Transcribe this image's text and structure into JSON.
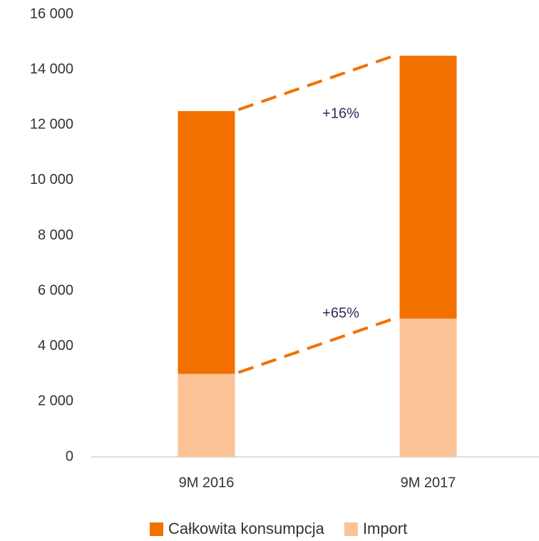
{
  "chart_data": {
    "type": "stacked_bar",
    "categories": [
      "9M 2016",
      "9M 2017"
    ],
    "series": [
      {
        "name": "Całkowita konsumpcja",
        "color": "#f27000",
        "values": [
          9500,
          9500
        ]
      },
      {
        "name": "Import",
        "color": "#fbc396",
        "values": [
          3000,
          5000
        ]
      }
    ],
    "ylim": [
      0,
      16000
    ],
    "yticks": [
      0,
      {
        "value": 2000,
        "label": "2 000"
      },
      {
        "value": 4000,
        "label": "4 000"
      },
      {
        "value": 6000,
        "label": "6 000"
      },
      {
        "value": 8000,
        "label": "8 000"
      },
      {
        "value": 10000,
        "label": "10 000"
      },
      {
        "value": 12000,
        "label": "12 000"
      },
      {
        "value": 14000,
        "label": "14 000"
      },
      {
        "value": 16000,
        "label": "16 000"
      }
    ],
    "annotations": [
      "+16%",
      "+65%"
    ],
    "legend": "bottom"
  }
}
